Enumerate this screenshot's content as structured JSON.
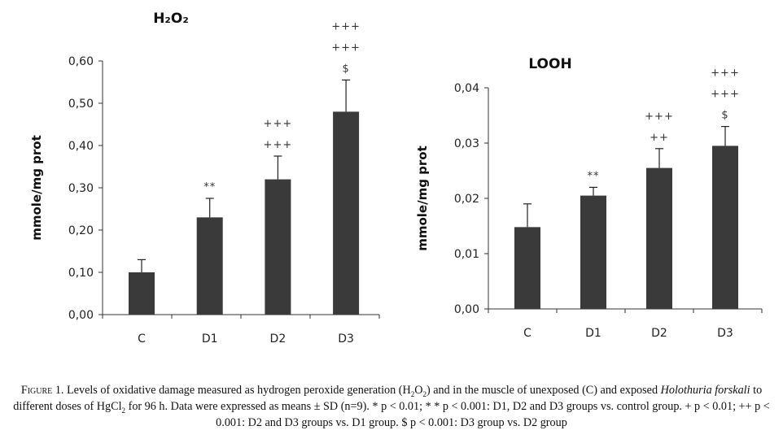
{
  "chart_data": [
    {
      "type": "bar",
      "title": "H₂O₂",
      "ylabel": "mmole/mg prot",
      "xlabel": "",
      "categories": [
        "C",
        "D1",
        "D2",
        "D3"
      ],
      "values": [
        0.1,
        0.23,
        0.32,
        0.48
      ],
      "error": [
        0.03,
        0.045,
        0.055,
        0.075
      ],
      "annotations": [
        [],
        [
          "**"
        ],
        [
          "+++",
          "+++"
        ],
        [
          "+++",
          "+++",
          "$"
        ]
      ],
      "ylim": [
        0,
        0.6
      ],
      "yticks": [
        0,
        0.1,
        0.2,
        0.3,
        0.4,
        0.5,
        0.6
      ],
      "ytick_labels": [
        "0,00",
        "0,10",
        "0,20",
        "0,30",
        "0,40",
        "0,50",
        "0,60"
      ],
      "bar_color": "#3a3a3a",
      "grid": false
    },
    {
      "type": "bar",
      "title": "LOOH",
      "ylabel": "mmole/mg prot",
      "xlabel": "",
      "categories": [
        "C",
        "D1",
        "D2",
        "D3"
      ],
      "values": [
        0.0148,
        0.0205,
        0.0255,
        0.0295
      ],
      "error": [
        0.0042,
        0.0015,
        0.0035,
        0.0035
      ],
      "annotations": [
        [],
        [
          "**"
        ],
        [
          "+++",
          "++"
        ],
        [
          "+++",
          "+++",
          "$"
        ]
      ],
      "ylim": [
        0,
        0.04
      ],
      "yticks": [
        0,
        0.01,
        0.02,
        0.03,
        0.04
      ],
      "ytick_labels": [
        "0,00",
        "0,01",
        "0,02",
        "0,03",
        "0,04"
      ],
      "bar_color": "#3a3a3a",
      "grid": false
    }
  ],
  "caption": {
    "figure_label": "Figure 1.",
    "part1": " Levels of oxidative damage measured as hydrogen peroxide generation (H",
    "sub1": "2",
    "part2": "O",
    "sub2": "2",
    "part3": ") and in the muscle of unexposed (C) and exposed ",
    "species": "Holothuria forskali",
    "part4": " to different doses of HgCl",
    "sub3": "2",
    "part5": " for 96 h. Data were expressed as means ± SD (n=9). * p < 0.01; * * p < 0.001: D1, D2 and D3 groups vs. control group. + p < 0.01; ++ p < 0.001: D2 and D3 groups vs. D1 group. $ p < 0.001: D3 group vs. D2 group"
  }
}
